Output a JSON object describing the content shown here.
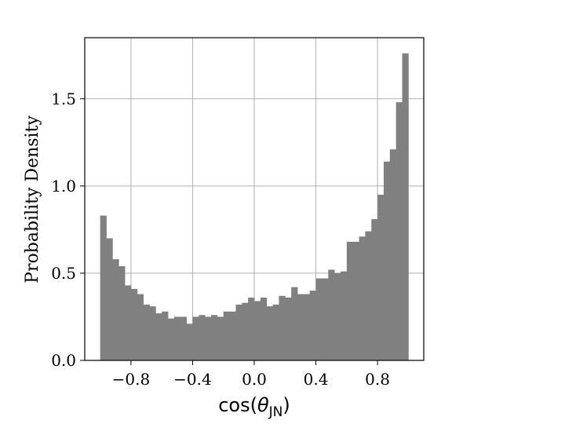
{
  "chart_data": {
    "type": "bar",
    "title": "",
    "xlabel": {
      "base": "cos(",
      "symbol": "θ",
      "subscript": "JN",
      "close": ")"
    },
    "ylabel": "Probability Density",
    "xlim": [
      -1.1,
      1.1
    ],
    "ylim": [
      0.0,
      1.85
    ],
    "grid": true,
    "bar_color": "#808080",
    "bin_edges_range": [
      -1.0,
      1.0
    ],
    "bin_count": 50,
    "bin_width": 0.04,
    "values": [
      0.83,
      0.7,
      0.58,
      0.54,
      0.43,
      0.41,
      0.38,
      0.32,
      0.31,
      0.27,
      0.28,
      0.24,
      0.25,
      0.25,
      0.21,
      0.25,
      0.26,
      0.25,
      0.26,
      0.25,
      0.28,
      0.28,
      0.32,
      0.33,
      0.36,
      0.34,
      0.36,
      0.31,
      0.32,
      0.37,
      0.36,
      0.42,
      0.38,
      0.38,
      0.4,
      0.47,
      0.47,
      0.52,
      0.5,
      0.51,
      0.68,
      0.68,
      0.71,
      0.74,
      0.81,
      0.95,
      1.14,
      1.21,
      1.48,
      1.76
    ],
    "x_ticks": [
      -0.8,
      -0.4,
      0.0,
      0.4,
      0.8
    ],
    "x_tick_labels": [
      "−0.8",
      "−0.4",
      "0.0",
      "0.4",
      "0.8"
    ],
    "y_ticks": [
      0.0,
      0.5,
      1.0,
      1.5
    ],
    "y_tick_labels": [
      "0.0",
      "0.5",
      "1.0",
      "1.5"
    ]
  }
}
